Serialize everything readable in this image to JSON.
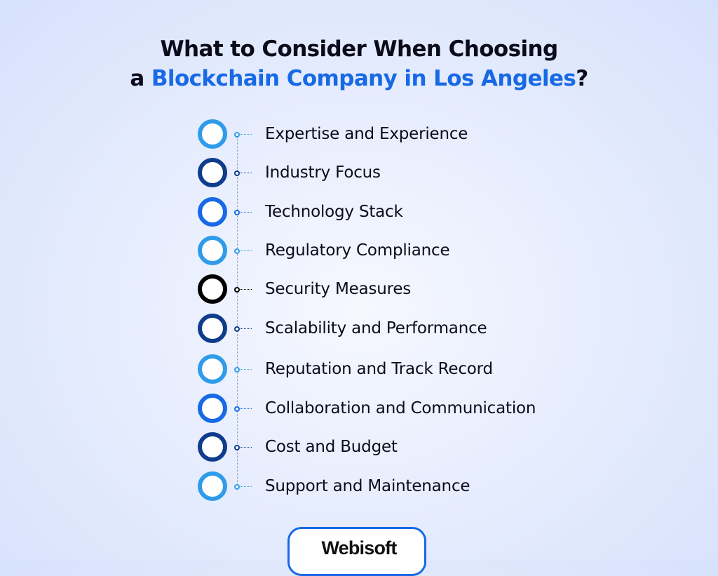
{
  "title": {
    "line1": "What to Consider When Choosing",
    "line2_prefix": "a ",
    "line2_accent": "Blockchain Company in Los Angeles",
    "line2_suffix": "?",
    "accent_color": "#1769e6"
  },
  "items": [
    {
      "label": "Expertise and Experience",
      "color": "#2f9ce9"
    },
    {
      "label": "Industry Focus",
      "color": "#0f3c8c"
    },
    {
      "label": "Technology Stack",
      "color": "#1769e6"
    },
    {
      "label": "Regulatory Compliance",
      "color": "#2f9ce9"
    },
    {
      "label": "Security Measures",
      "color": "#000000"
    },
    {
      "label": "Scalability and Performance",
      "color": "#0f3c8c"
    },
    {
      "label": "Reputation and Track Record",
      "color": "#2f9ce9"
    },
    {
      "label": "Collaboration and Communication",
      "color": "#1769e6"
    },
    {
      "label": "Cost and Budget",
      "color": "#0f3c8c"
    },
    {
      "label": "Support and Maintenance",
      "color": "#2f9ce9"
    }
  ],
  "brand": {
    "name": "Webisoft",
    "border_color": "#1769e6"
  }
}
